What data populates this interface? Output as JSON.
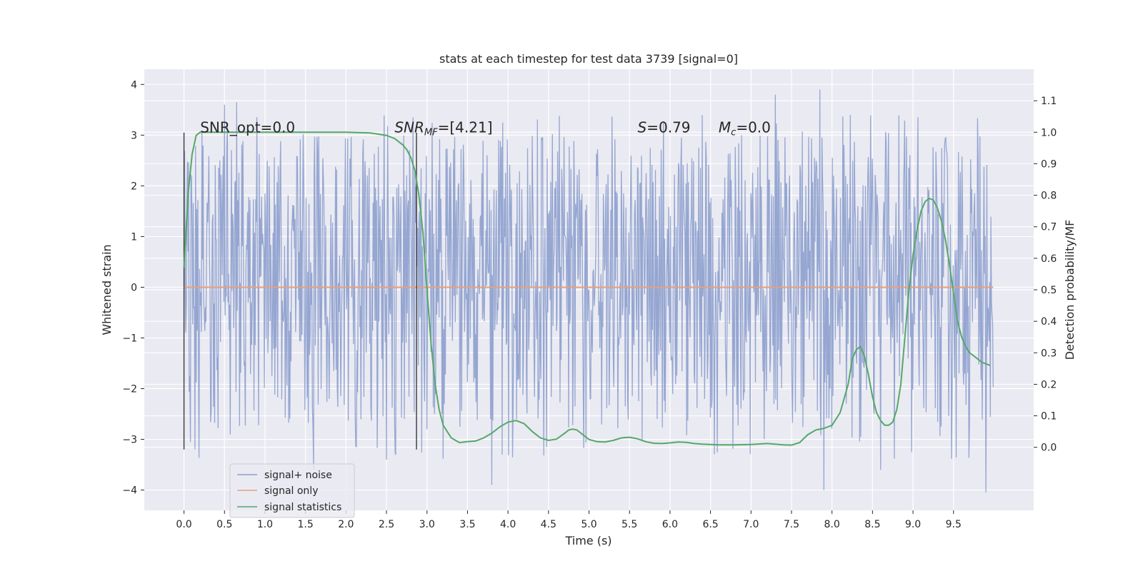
{
  "chart_data": {
    "type": "line",
    "title": "stats at each timestep for test data 3739 [signal=0]",
    "xlabel": "Time (s)",
    "ylabel_left": "Whitened strain",
    "ylabel_right": "Detection probability/MF",
    "xlim": [
      -0.49,
      10.49
    ],
    "ylim_left": [
      -4.4,
      4.3
    ],
    "ylim_right": [
      -0.2,
      1.2
    ],
    "x_ticks": [
      "0.0",
      "0.5",
      "1.0",
      "1.5",
      "2.0",
      "2.5",
      "3.0",
      "3.5",
      "4.0",
      "4.5",
      "5.0",
      "5.5",
      "6.0",
      "6.5",
      "7.0",
      "7.5",
      "8.0",
      "8.5",
      "9.0",
      "9.5"
    ],
    "y_left_ticks": [
      "−4",
      "−3",
      "−2",
      "−1",
      "0",
      "1",
      "2",
      "3",
      "4"
    ],
    "y_right_ticks": [
      "0.0",
      "0.1",
      "0.2",
      "0.3",
      "0.4",
      "0.5",
      "0.6",
      "0.7",
      "0.8",
      "0.9",
      "1.0",
      "1.1"
    ],
    "grid": true,
    "legend_position": "bottom-left",
    "series": [
      {
        "name": "signal+ noise",
        "color": "#8c9fcd",
        "axis": "left",
        "x_range": [
          0.0,
          9.99
        ],
        "band_typical": [
          -1.25,
          1.8
        ],
        "band_common": [
          -2.2,
          2.4
        ],
        "notable_extremes": [
          {
            "x": 0.08,
            "y": -3.05
          },
          {
            "x": 0.5,
            "y": 3.6
          },
          {
            "x": 0.65,
            "y": 3.65
          },
          {
            "x": 1.6,
            "y": -3.6
          },
          {
            "x": 2.5,
            "y": -3.4
          },
          {
            "x": 3.8,
            "y": -3.9
          },
          {
            "x": 7.3,
            "y": 3.8
          },
          {
            "x": 7.85,
            "y": 3.9
          },
          {
            "x": 7.9,
            "y": -4.0
          },
          {
            "x": 8.6,
            "y": -3.6
          },
          {
            "x": 9.9,
            "y": -4.05
          }
        ]
      },
      {
        "name": "signal only",
        "color": "#e8a07f",
        "axis": "left",
        "x": [
          0.0,
          9.99
        ],
        "y": [
          0.0,
          0.0
        ]
      },
      {
        "name": "signal statistics",
        "color": "#55a868",
        "axis": "right",
        "x": [
          0.0,
          0.05,
          0.1,
          0.15,
          0.2,
          0.3,
          0.5,
          1.0,
          1.5,
          2.0,
          2.3,
          2.5,
          2.6,
          2.7,
          2.75,
          2.8,
          2.85,
          2.9,
          2.95,
          3.0,
          3.05,
          3.1,
          3.15,
          3.2,
          3.3,
          3.4,
          3.5,
          3.6,
          3.7,
          3.8,
          3.9,
          4.0,
          4.1,
          4.2,
          4.3,
          4.4,
          4.5,
          4.6,
          4.7,
          4.75,
          4.8,
          4.85,
          4.9,
          5.0,
          5.1,
          5.2,
          5.3,
          5.4,
          5.5,
          5.6,
          5.7,
          5.8,
          5.9,
          6.0,
          6.1,
          6.2,
          6.3,
          6.4,
          6.5,
          6.6,
          6.8,
          7.0,
          7.2,
          7.4,
          7.5,
          7.6,
          7.7,
          7.8,
          7.9,
          8.0,
          8.1,
          8.2,
          8.25,
          8.3,
          8.35,
          8.4,
          8.45,
          8.5,
          8.55,
          8.6,
          8.65,
          8.7,
          8.75,
          8.8,
          8.85,
          8.9,
          8.95,
          9.0,
          9.05,
          9.1,
          9.15,
          9.2,
          9.25,
          9.3,
          9.35,
          9.4,
          9.45,
          9.5,
          9.55,
          9.6,
          9.65,
          9.7,
          9.75,
          9.8,
          9.85,
          9.9,
          9.95
        ],
        "y": [
          0.57,
          0.8,
          0.93,
          0.99,
          1.0,
          1.0,
          1.0,
          1.0,
          1.0,
          1.0,
          0.998,
          0.99,
          0.98,
          0.96,
          0.945,
          0.92,
          0.88,
          0.8,
          0.68,
          0.5,
          0.33,
          0.2,
          0.12,
          0.07,
          0.03,
          0.015,
          0.018,
          0.02,
          0.03,
          0.045,
          0.065,
          0.08,
          0.085,
          0.075,
          0.05,
          0.03,
          0.022,
          0.026,
          0.045,
          0.055,
          0.058,
          0.055,
          0.045,
          0.025,
          0.018,
          0.017,
          0.022,
          0.03,
          0.032,
          0.027,
          0.018,
          0.013,
          0.012,
          0.014,
          0.017,
          0.016,
          0.012,
          0.01,
          0.009,
          0.008,
          0.008,
          0.009,
          0.012,
          0.008,
          0.007,
          0.015,
          0.04,
          0.055,
          0.06,
          0.07,
          0.11,
          0.2,
          0.28,
          0.31,
          0.32,
          0.29,
          0.23,
          0.16,
          0.11,
          0.085,
          0.07,
          0.07,
          0.08,
          0.12,
          0.2,
          0.35,
          0.5,
          0.61,
          0.69,
          0.75,
          0.78,
          0.79,
          0.785,
          0.76,
          0.72,
          0.66,
          0.58,
          0.49,
          0.4,
          0.35,
          0.32,
          0.3,
          0.29,
          0.28,
          0.27,
          0.265,
          0.26
        ]
      }
    ],
    "vertical_markers": [
      {
        "x": 0.0,
        "y_range": [
          -3.2,
          3.05
        ],
        "color": "#444444"
      },
      {
        "x": 2.87,
        "y_range": [
          -3.2,
          3.05
        ],
        "color": "#444444"
      }
    ],
    "annotations": [
      {
        "id": "snr-opt",
        "x": 0.2,
        "y": 3.0,
        "text": "SNR_opt=0.0"
      },
      {
        "id": "snr-mf",
        "x": 2.6,
        "y": 3.0,
        "main": "SNR",
        "sub": "MF",
        "rest": "=[4.21]"
      },
      {
        "id": "s-value",
        "x": 5.6,
        "y": 3.0,
        "main": "S",
        "rest": "=0.79"
      },
      {
        "id": "mc-value",
        "x": 6.6,
        "y": 3.0,
        "main": "M",
        "sub": "c",
        "rest": "=0.0"
      }
    ]
  }
}
